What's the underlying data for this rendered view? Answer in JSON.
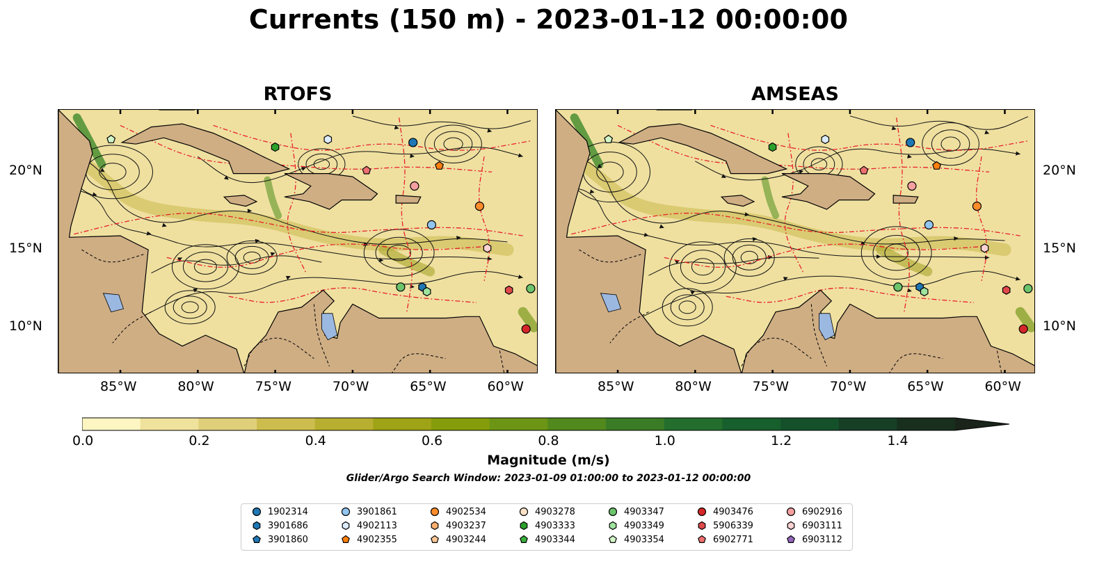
{
  "title": "Currents (150 m) - 2023-01-12 00:00:00",
  "panels": [
    {
      "title": "RTOFS"
    },
    {
      "title": "AMSEAS"
    }
  ],
  "map_extent": {
    "lon": [
      -89,
      -58
    ],
    "lat": [
      7,
      24
    ]
  },
  "lon_ticks": [
    "85°W",
    "80°W",
    "75°W",
    "70°W",
    "65°W",
    "60°W"
  ],
  "lat_ticks": [
    "20°N",
    "15°N",
    "10°N"
  ],
  "colorbar": {
    "ticks": [
      "0.0",
      "0.2",
      "0.4",
      "0.6",
      "0.8",
      "1.0",
      "1.2",
      "1.4"
    ],
    "label": "Magnitude (m/s)",
    "colors": [
      "#fdf6c3",
      "#efe29c",
      "#e0cf7a",
      "#cdbd4f",
      "#b8af30",
      "#9fa316",
      "#859d0b",
      "#6c9515",
      "#52891c",
      "#3a7c25",
      "#236e2c",
      "#175f2d",
      "#14512b",
      "#173f26",
      "#182f1e",
      "#1a241a"
    ]
  },
  "search_window": "Glider/Argo Search Window: 2023-01-09 01:00:00 to 2023-01-12 00:00:00",
  "legend": [
    {
      "label": "1902314",
      "marker": "circle",
      "color": "#1f77b4"
    },
    {
      "label": "3901686",
      "marker": "hexagon",
      "color": "#1f77b4"
    },
    {
      "label": "3901860",
      "marker": "pentagon",
      "color": "#1f77b4"
    },
    {
      "label": "3901861",
      "marker": "circle",
      "color": "#92c5f0"
    },
    {
      "label": "4902113",
      "marker": "hexagon",
      "color": "#dcebff"
    },
    {
      "label": "4902355",
      "marker": "pentagon",
      "color": "#ff7f0e"
    },
    {
      "label": "4902534",
      "marker": "circle",
      "color": "#ff8c2a"
    },
    {
      "label": "4903237",
      "marker": "hexagon",
      "color": "#ffb070"
    },
    {
      "label": "4903244",
      "marker": "pentagon",
      "color": "#ffc896"
    },
    {
      "label": "4903278",
      "marker": "circle",
      "color": "#ffe3c8"
    },
    {
      "label": "4903333",
      "marker": "hexagon",
      "color": "#2ca02c"
    },
    {
      "label": "4903344",
      "marker": "pentagon",
      "color": "#3cae3c"
    },
    {
      "label": "4903347",
      "marker": "circle",
      "color": "#6cc46c"
    },
    {
      "label": "4903349",
      "marker": "hexagon",
      "color": "#9ee39e"
    },
    {
      "label": "4903354",
      "marker": "pentagon",
      "color": "#d2f5c8"
    },
    {
      "label": "4903476",
      "marker": "circle",
      "color": "#d62728"
    },
    {
      "label": "5906339",
      "marker": "hexagon",
      "color": "#e04a4a"
    },
    {
      "label": "6902771",
      "marker": "pentagon",
      "color": "#ee7070"
    },
    {
      "label": "6902916",
      "marker": "circle",
      "color": "#f4a0a0"
    },
    {
      "label": "6903111",
      "marker": "hexagon",
      "color": "#fcd2d2"
    },
    {
      "label": "6903112",
      "marker": "pentagon",
      "color": "#9467bd"
    }
  ],
  "floats": {
    "RTOFS": [
      {
        "id": "4903354",
        "lon": -85.6,
        "lat": 22.1
      },
      {
        "id": "4903333",
        "lon": -75.0,
        "lat": 21.6
      },
      {
        "id": "4902113",
        "lon": -71.6,
        "lat": 22.1
      },
      {
        "id": "1902314",
        "lon": -66.1,
        "lat": 21.9
      },
      {
        "id": "4902355",
        "lon": -64.4,
        "lat": 20.4
      },
      {
        "id": "6902771",
        "lon": -69.1,
        "lat": 20.1
      },
      {
        "id": "6902916",
        "lon": -66.0,
        "lat": 19.1
      },
      {
        "id": "4902534",
        "lon": -61.8,
        "lat": 17.8
      },
      {
        "id": "3901861",
        "lon": -64.9,
        "lat": 16.6
      },
      {
        "id": "6903111",
        "lon": -61.3,
        "lat": 15.1
      },
      {
        "id": "4903347",
        "lon": -66.9,
        "lat": 12.6
      },
      {
        "id": "3901686",
        "lon": -65.5,
        "lat": 12.6
      },
      {
        "id": "4903349",
        "lon": -65.2,
        "lat": 12.3
      },
      {
        "id": "5906339",
        "lon": -59.9,
        "lat": 12.4
      },
      {
        "id": "4903347",
        "lon": -58.5,
        "lat": 12.5
      },
      {
        "id": "4903476",
        "lon": -58.8,
        "lat": 9.9
      }
    ],
    "AMSEAS": [
      {
        "id": "4903354",
        "lon": -85.6,
        "lat": 22.1
      },
      {
        "id": "4903333",
        "lon": -75.0,
        "lat": 21.6
      },
      {
        "id": "4902113",
        "lon": -71.6,
        "lat": 22.1
      },
      {
        "id": "1902314",
        "lon": -66.1,
        "lat": 21.9
      },
      {
        "id": "4902355",
        "lon": -64.4,
        "lat": 20.4
      },
      {
        "id": "6902771",
        "lon": -69.1,
        "lat": 20.1
      },
      {
        "id": "6902916",
        "lon": -66.0,
        "lat": 19.1
      },
      {
        "id": "4902534",
        "lon": -61.8,
        "lat": 17.8
      },
      {
        "id": "3901861",
        "lon": -64.9,
        "lat": 16.6
      },
      {
        "id": "6903111",
        "lon": -61.3,
        "lat": 15.1
      },
      {
        "id": "4903347",
        "lon": -66.9,
        "lat": 12.6
      },
      {
        "id": "3901686",
        "lon": -65.5,
        "lat": 12.6
      },
      {
        "id": "4903349",
        "lon": -65.2,
        "lat": 12.3
      },
      {
        "id": "5906339",
        "lon": -59.9,
        "lat": 12.4
      },
      {
        "id": "4903347",
        "lon": -58.5,
        "lat": 12.5
      },
      {
        "id": "4903476",
        "lon": -58.8,
        "lat": 9.9
      }
    ]
  }
}
